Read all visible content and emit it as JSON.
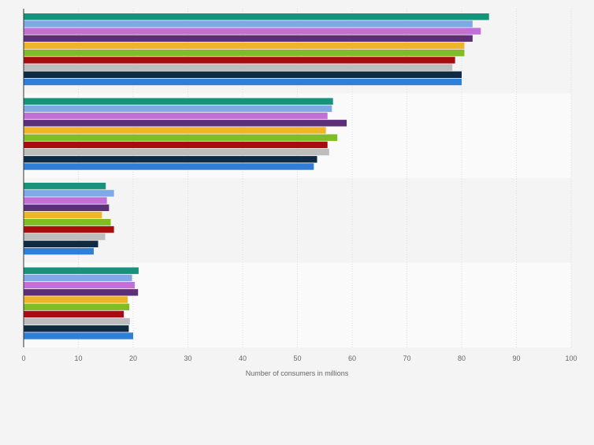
{
  "chart_data": {
    "type": "bar",
    "orientation": "horizontal",
    "title": "",
    "xlabel": "Number of consumers in millions",
    "ylabel": "",
    "xlim": [
      0,
      100
    ],
    "x_ticks": [
      0,
      10,
      20,
      30,
      40,
      50,
      60,
      70,
      80,
      90,
      100
    ],
    "grid": true,
    "legend": "none",
    "categories": [
      "",
      "",
      "",
      ""
    ],
    "series": [
      {
        "color": "#17937b",
        "values": [
          85,
          56.5,
          15,
          21
        ]
      },
      {
        "color": "#7fa8e6",
        "values": [
          82,
          56.3,
          16.5,
          19.8
        ]
      },
      {
        "color": "#c26fd6",
        "values": [
          83.5,
          55.5,
          15.2,
          20.3
        ]
      },
      {
        "color": "#5e2f79",
        "values": [
          82,
          59,
          15.6,
          20.9
        ]
      },
      {
        "color": "#f0b429",
        "values": [
          80.5,
          55.2,
          14.3,
          19
        ]
      },
      {
        "color": "#7ebd27",
        "values": [
          80.5,
          57.3,
          15.9,
          19.3
        ]
      },
      {
        "color": "#a80d0d",
        "values": [
          78.8,
          55.5,
          16.5,
          18.3
        ]
      },
      {
        "color": "#bdbdbd",
        "values": [
          78.3,
          55.8,
          14.9,
          19.4
        ]
      },
      {
        "color": "#0f2a43",
        "values": [
          80,
          53.6,
          13.6,
          19.2
        ]
      },
      {
        "color": "#2f7ed8",
        "values": [
          80,
          53,
          12.8,
          20
        ]
      }
    ]
  }
}
